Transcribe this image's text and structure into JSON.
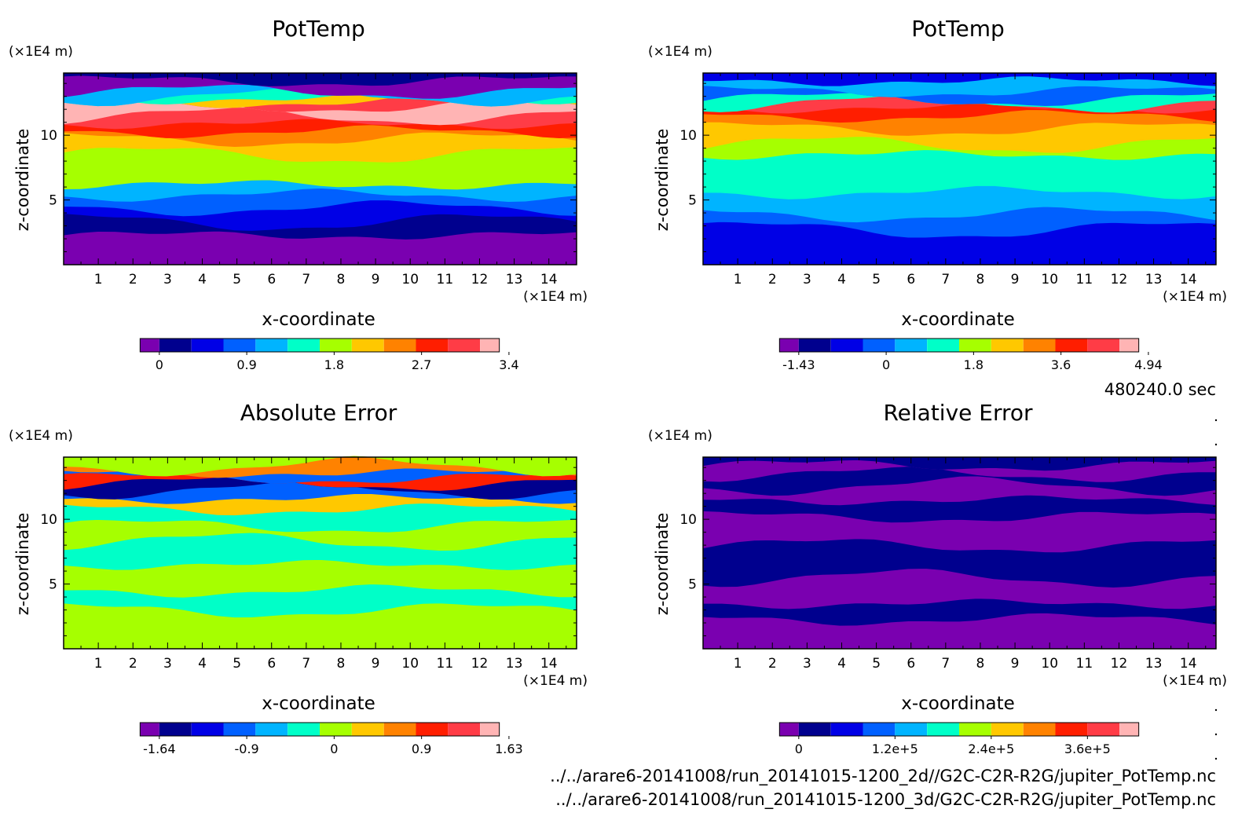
{
  "time_label": "480240.0 sec",
  "file_paths": [
    "../../arare6-20141008/run_20141015-1200_2d//G2C-C2R-R2G/jupiter_PotTemp.nc",
    "../../arare6-20141008/run_20141015-1200_3d/G2C-C2R-R2G/jupiter_PotTemp.nc"
  ],
  "palette": [
    "#7a00b0",
    "#00008e",
    "#0000e6",
    "#0060ff",
    "#00b4ff",
    "#00ffc8",
    "#a6ff00",
    "#ffc800",
    "#ff8200",
    "#ff1e00",
    "#ff3c46",
    "#ffb4b4"
  ],
  "chart_data": [
    {
      "type": "heatmap",
      "title": "PotTemp",
      "xlabel": "x-coordinate",
      "ylabel": "z-coordinate",
      "x_unit": "(×1E4 m)",
      "z_unit": "(×1E4 m)",
      "xlim": [
        0,
        14.8
      ],
      "ylim": [
        0,
        14.8
      ],
      "x_ticks": [
        "1",
        "2",
        "3",
        "4",
        "5",
        "6",
        "7",
        "8",
        "9",
        "10",
        "11",
        "12",
        "13",
        "14"
      ],
      "y_ticks": [
        "5",
        "10"
      ],
      "colorbar_ticks": [
        "0",
        "0.9",
        "1.8",
        "2.7",
        "3.4"
      ],
      "bands": [
        {
          "z0": 0,
          "z1": 2.3,
          "c": 0
        },
        {
          "z0": 2.3,
          "z1": 3.3,
          "c": 1
        },
        {
          "z0": 3.3,
          "z1": 4.4,
          "c": 2
        },
        {
          "z0": 4.4,
          "z1": 5.4,
          "c": 3
        },
        {
          "z0": 5.4,
          "z1": 6.2,
          "c": 4
        },
        {
          "z0": 6.2,
          "z1": 8.5,
          "c": 6
        },
        {
          "z0": 8.5,
          "z1": 9.7,
          "c": 7
        },
        {
          "z0": 9.7,
          "z1": 10.3,
          "c": 8
        },
        {
          "z0": 10.3,
          "z1": 10.9,
          "c": 9
        },
        {
          "z0": 10.9,
          "z1": 11.5,
          "c": 10
        },
        {
          "z0": 11.5,
          "z1": 12.3,
          "c": 11
        },
        {
          "z0": 12.3,
          "z1": 12.6,
          "c": 10
        },
        {
          "z0": 12.6,
          "z1": 12.8,
          "c": 7
        },
        {
          "z0": 12.8,
          "z1": 13.0,
          "c": 5
        },
        {
          "z0": 13.0,
          "z1": 13.4,
          "c": 4
        },
        {
          "z0": 13.4,
          "z1": 14.2,
          "c": 0
        },
        {
          "z0": 14.2,
          "z1": 14.8,
          "c": 1
        }
      ]
    },
    {
      "type": "heatmap",
      "title": "PotTemp",
      "xlabel": "x-coordinate",
      "ylabel": "z-coordinate",
      "x_unit": "(×1E4 m)",
      "z_unit": "(×1E4 m)",
      "xlim": [
        0,
        14.8
      ],
      "ylim": [
        0,
        14.8
      ],
      "x_ticks": [
        "1",
        "2",
        "3",
        "4",
        "5",
        "6",
        "7",
        "8",
        "9",
        "10",
        "11",
        "12",
        "13",
        "14"
      ],
      "y_ticks": [
        "5",
        "10"
      ],
      "colorbar_ticks": [
        "-1.43",
        "0",
        "1.8",
        "3.6",
        "4.94"
      ],
      "bands": [
        {
          "z0": 0,
          "z1": 2.7,
          "c": 2
        },
        {
          "z0": 2.7,
          "z1": 3.9,
          "c": 3
        },
        {
          "z0": 3.9,
          "z1": 5.6,
          "c": 4
        },
        {
          "z0": 5.6,
          "z1": 8.5,
          "c": 5
        },
        {
          "z0": 8.5,
          "z1": 9.3,
          "c": 6
        },
        {
          "z0": 9.3,
          "z1": 10.5,
          "c": 7
        },
        {
          "z0": 10.5,
          "z1": 11.5,
          "c": 8
        },
        {
          "z0": 11.5,
          "z1": 12.1,
          "c": 9
        },
        {
          "z0": 12.1,
          "z1": 12.5,
          "c": 10
        },
        {
          "z0": 12.5,
          "z1": 12.8,
          "c": 5
        },
        {
          "z0": 12.8,
          "z1": 13.4,
          "c": 3
        },
        {
          "z0": 13.4,
          "z1": 14.2,
          "c": 4
        },
        {
          "z0": 14.2,
          "z1": 14.8,
          "c": 2
        }
      ]
    },
    {
      "type": "heatmap",
      "title": "Absolute Error",
      "xlabel": "x-coordinate",
      "ylabel": "z-coordinate",
      "x_unit": "(×1E4 m)",
      "z_unit": "(×1E4 m)",
      "xlim": [
        0,
        14.8
      ],
      "ylim": [
        0,
        14.8
      ],
      "x_ticks": [
        "1",
        "2",
        "3",
        "4",
        "5",
        "6",
        "7",
        "8",
        "9",
        "10",
        "11",
        "12",
        "13",
        "14"
      ],
      "y_ticks": [
        "5",
        "10"
      ],
      "colorbar_ticks": [
        "-1.64",
        "-0.9",
        "0",
        "0.9",
        "1.63"
      ],
      "bands": [
        {
          "z0": 0,
          "z1": 3.0,
          "c": 6
        },
        {
          "z0": 3.0,
          "z1": 4.5,
          "c": 5
        },
        {
          "z0": 4.5,
          "z1": 6.5,
          "c": 6
        },
        {
          "z0": 6.5,
          "z1": 8.3,
          "c": 5
        },
        {
          "z0": 8.3,
          "z1": 9.5,
          "c": 6
        },
        {
          "z0": 9.5,
          "z1": 10.8,
          "c": 5
        },
        {
          "z0": 10.8,
          "z1": 11.6,
          "c": 7
        },
        {
          "z0": 11.6,
          "z1": 12.3,
          "c": 3
        },
        {
          "z0": 12.3,
          "z1": 12.8,
          "c": 1
        },
        {
          "z0": 12.8,
          "z1": 13.2,
          "c": 9
        },
        {
          "z0": 13.2,
          "z1": 13.6,
          "c": 3
        },
        {
          "z0": 13.6,
          "z1": 14.1,
          "c": 8
        },
        {
          "z0": 14.1,
          "z1": 14.8,
          "c": 6
        }
      ]
    },
    {
      "type": "heatmap",
      "title": "Relative Error",
      "xlabel": "x-coordinate",
      "ylabel": "z-coordinate",
      "x_unit": "(×1E4 m)",
      "z_unit": "(×1E4 m)",
      "xlim": [
        0,
        14.8
      ],
      "ylim": [
        0,
        14.8
      ],
      "x_ticks": [
        "1",
        "2",
        "3",
        "4",
        "5",
        "6",
        "7",
        "8",
        "9",
        "10",
        "11",
        "12",
        "13",
        "14"
      ],
      "y_ticks": [
        "5",
        "10"
      ],
      "colorbar_ticks": [
        "0",
        "1.2e+5",
        "2.4e+5",
        "3.6e+5"
      ],
      "bands": [
        {
          "z0": 0,
          "z1": 2.3,
          "c": 0
        },
        {
          "z0": 2.3,
          "z1": 3.5,
          "c": 1
        },
        {
          "z0": 3.5,
          "z1": 5.5,
          "c": 0
        },
        {
          "z0": 5.5,
          "z1": 8.0,
          "c": 1
        },
        {
          "z0": 8.0,
          "z1": 10.2,
          "c": 0
        },
        {
          "z0": 10.2,
          "z1": 11.5,
          "c": 1
        },
        {
          "z0": 11.5,
          "z1": 12.6,
          "c": 0
        },
        {
          "z0": 12.6,
          "z1": 13.5,
          "c": 1
        },
        {
          "z0": 13.5,
          "z1": 14.2,
          "c": 0
        },
        {
          "z0": 14.2,
          "z1": 14.8,
          "c": 1
        }
      ]
    }
  ]
}
